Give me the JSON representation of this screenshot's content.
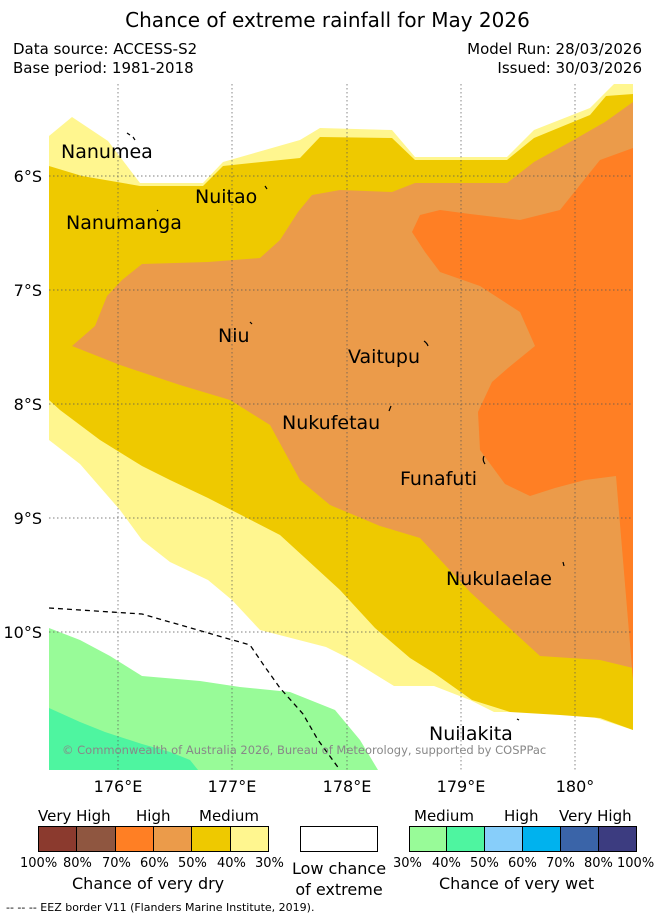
{
  "title": "Chance of extreme rainfall for May 2026",
  "meta": {
    "data_source": "Data source: ACCESS-S2",
    "base_period": "Base period: 1981-2018",
    "model_run": "Model Run: 28/03/2026",
    "issued": "Issued: 30/03/2026"
  },
  "map": {
    "lat_ticks": [
      "6°S",
      "7°S",
      "8°S",
      "9°S",
      "10°S"
    ],
    "lon_ticks": [
      "176°E",
      "177°E",
      "178°E",
      "179°E",
      "180°"
    ],
    "islands": [
      "Nanumea",
      "Nuitao",
      "Nanumanga",
      "Niu",
      "Vaitupu",
      "Nukufetau",
      "Funafuti",
      "Nukulaelae",
      "Nuilakita"
    ],
    "copyright": "© Commonwealth of Australia 2026, Bureau of Meteorology, supported by COSPPac",
    "eez_line_color": "#000000"
  },
  "legend": {
    "dry": {
      "headings": [
        "Very High",
        "High",
        "Medium"
      ],
      "percents": [
        "100%",
        "80%",
        "70%",
        "60%",
        "50%",
        "40%",
        "30%"
      ],
      "colors": [
        "#8b3a2e",
        "#8f5640",
        "#ff7f24",
        "#eb9b4a",
        "#eec900",
        "#fff68f"
      ],
      "title": "Chance of very dry"
    },
    "low": {
      "title_line1": "Low chance",
      "title_line2": "of extreme",
      "color": "#ffffff"
    },
    "wet": {
      "headings": [
        "Medium",
        "High",
        "Very High"
      ],
      "percents": [
        "30%",
        "40%",
        "50%",
        "60%",
        "70%",
        "80%",
        "100%"
      ],
      "colors": [
        "#98fb98",
        "#4ef5a0",
        "#87cefa",
        "#00b2ee",
        "#3a64a8",
        "#3c3c80"
      ],
      "title": "Chance of very wet"
    }
  },
  "eez_note": "-- -- -- EEZ border V11 (Flanders Marine Institute, 2019)."
}
